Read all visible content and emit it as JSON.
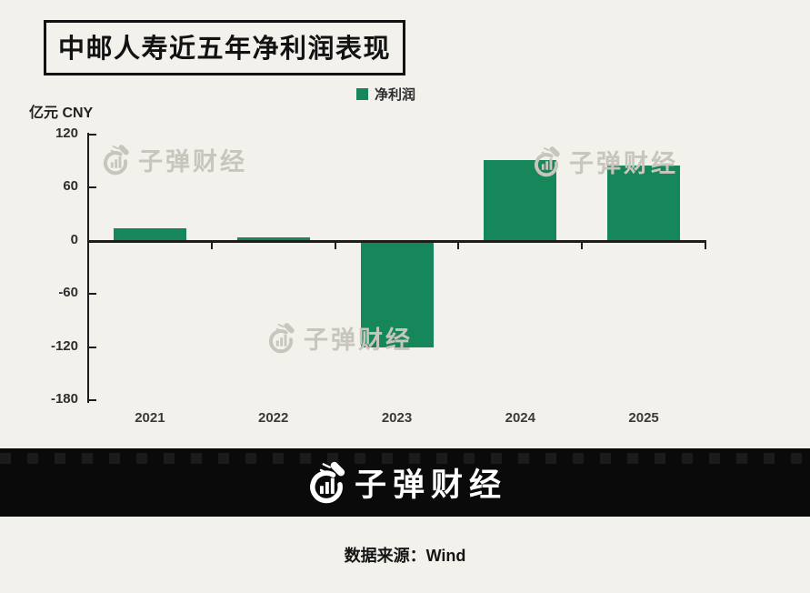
{
  "title": "中邮人寿近五年净利润表现",
  "legend": {
    "label": "净利润"
  },
  "unit_label": "亿元 CNY",
  "watermark": {
    "text": "子弹财经",
    "icon": "bullet-chart-logo"
  },
  "footer": {
    "brand": "子弹财经",
    "source": "数据来源：Wind"
  },
  "colors": {
    "bar": "#15875A",
    "background": "#F2F1EC",
    "axis": "#1D1D1D",
    "watermark_gray": "#C8C5BD",
    "footer_background": "#0A0A0A",
    "title_text": "#121212"
  },
  "chart_data": {
    "type": "bar",
    "title": "中邮人寿近五年净利润表现",
    "categories": [
      "2021",
      "2022",
      "2023",
      "2024",
      "2025"
    ],
    "values": [
      14,
      4,
      -120,
      91,
      85
    ],
    "legend": [
      "净利润"
    ],
    "legend_position": "top",
    "xlabel": "",
    "ylabel": "亿元 CNY",
    "ylim": [
      -180,
      120
    ],
    "yticks": [
      120,
      60,
      0,
      -60,
      -120,
      -180
    ],
    "grid": false,
    "bar_color": "#15875A"
  }
}
